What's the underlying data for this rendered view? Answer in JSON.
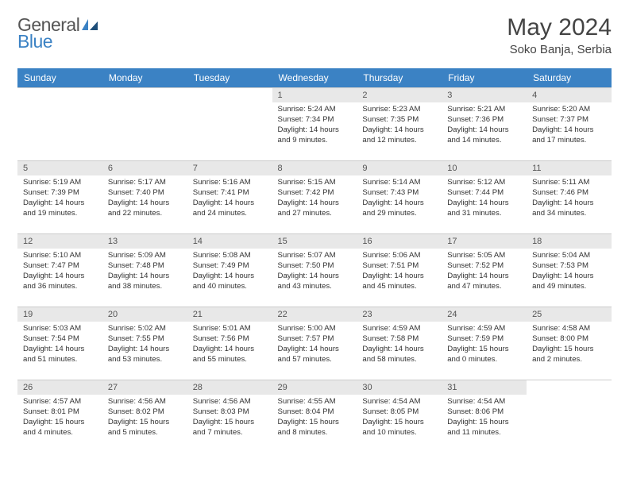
{
  "brand": {
    "general": "General",
    "blue": "Blue"
  },
  "title": "May 2024",
  "location": "Soko Banja, Serbia",
  "colors": {
    "header_bg": "#3b82c4",
    "header_fg": "#ffffff",
    "daynum_bg": "#e8e8e8",
    "border": "#cccccc",
    "brand_blue": "#3b82c4",
    "brand_gray": "#555555"
  },
  "weekdays": [
    "Sunday",
    "Monday",
    "Tuesday",
    "Wednesday",
    "Thursday",
    "Friday",
    "Saturday"
  ],
  "weeks": [
    [
      {
        "empty": true
      },
      {
        "empty": true
      },
      {
        "empty": true
      },
      {
        "n": "1",
        "sr": "Sunrise: 5:24 AM",
        "ss": "Sunset: 7:34 PM",
        "d1": "Daylight: 14 hours",
        "d2": "and 9 minutes."
      },
      {
        "n": "2",
        "sr": "Sunrise: 5:23 AM",
        "ss": "Sunset: 7:35 PM",
        "d1": "Daylight: 14 hours",
        "d2": "and 12 minutes."
      },
      {
        "n": "3",
        "sr": "Sunrise: 5:21 AM",
        "ss": "Sunset: 7:36 PM",
        "d1": "Daylight: 14 hours",
        "d2": "and 14 minutes."
      },
      {
        "n": "4",
        "sr": "Sunrise: 5:20 AM",
        "ss": "Sunset: 7:37 PM",
        "d1": "Daylight: 14 hours",
        "d2": "and 17 minutes."
      }
    ],
    [
      {
        "n": "5",
        "sr": "Sunrise: 5:19 AM",
        "ss": "Sunset: 7:39 PM",
        "d1": "Daylight: 14 hours",
        "d2": "and 19 minutes."
      },
      {
        "n": "6",
        "sr": "Sunrise: 5:17 AM",
        "ss": "Sunset: 7:40 PM",
        "d1": "Daylight: 14 hours",
        "d2": "and 22 minutes."
      },
      {
        "n": "7",
        "sr": "Sunrise: 5:16 AM",
        "ss": "Sunset: 7:41 PM",
        "d1": "Daylight: 14 hours",
        "d2": "and 24 minutes."
      },
      {
        "n": "8",
        "sr": "Sunrise: 5:15 AM",
        "ss": "Sunset: 7:42 PM",
        "d1": "Daylight: 14 hours",
        "d2": "and 27 minutes."
      },
      {
        "n": "9",
        "sr": "Sunrise: 5:14 AM",
        "ss": "Sunset: 7:43 PM",
        "d1": "Daylight: 14 hours",
        "d2": "and 29 minutes."
      },
      {
        "n": "10",
        "sr": "Sunrise: 5:12 AM",
        "ss": "Sunset: 7:44 PM",
        "d1": "Daylight: 14 hours",
        "d2": "and 31 minutes."
      },
      {
        "n": "11",
        "sr": "Sunrise: 5:11 AM",
        "ss": "Sunset: 7:46 PM",
        "d1": "Daylight: 14 hours",
        "d2": "and 34 minutes."
      }
    ],
    [
      {
        "n": "12",
        "sr": "Sunrise: 5:10 AM",
        "ss": "Sunset: 7:47 PM",
        "d1": "Daylight: 14 hours",
        "d2": "and 36 minutes."
      },
      {
        "n": "13",
        "sr": "Sunrise: 5:09 AM",
        "ss": "Sunset: 7:48 PM",
        "d1": "Daylight: 14 hours",
        "d2": "and 38 minutes."
      },
      {
        "n": "14",
        "sr": "Sunrise: 5:08 AM",
        "ss": "Sunset: 7:49 PM",
        "d1": "Daylight: 14 hours",
        "d2": "and 40 minutes."
      },
      {
        "n": "15",
        "sr": "Sunrise: 5:07 AM",
        "ss": "Sunset: 7:50 PM",
        "d1": "Daylight: 14 hours",
        "d2": "and 43 minutes."
      },
      {
        "n": "16",
        "sr": "Sunrise: 5:06 AM",
        "ss": "Sunset: 7:51 PM",
        "d1": "Daylight: 14 hours",
        "d2": "and 45 minutes."
      },
      {
        "n": "17",
        "sr": "Sunrise: 5:05 AM",
        "ss": "Sunset: 7:52 PM",
        "d1": "Daylight: 14 hours",
        "d2": "and 47 minutes."
      },
      {
        "n": "18",
        "sr": "Sunrise: 5:04 AM",
        "ss": "Sunset: 7:53 PM",
        "d1": "Daylight: 14 hours",
        "d2": "and 49 minutes."
      }
    ],
    [
      {
        "n": "19",
        "sr": "Sunrise: 5:03 AM",
        "ss": "Sunset: 7:54 PM",
        "d1": "Daylight: 14 hours",
        "d2": "and 51 minutes."
      },
      {
        "n": "20",
        "sr": "Sunrise: 5:02 AM",
        "ss": "Sunset: 7:55 PM",
        "d1": "Daylight: 14 hours",
        "d2": "and 53 minutes."
      },
      {
        "n": "21",
        "sr": "Sunrise: 5:01 AM",
        "ss": "Sunset: 7:56 PM",
        "d1": "Daylight: 14 hours",
        "d2": "and 55 minutes."
      },
      {
        "n": "22",
        "sr": "Sunrise: 5:00 AM",
        "ss": "Sunset: 7:57 PM",
        "d1": "Daylight: 14 hours",
        "d2": "and 57 minutes."
      },
      {
        "n": "23",
        "sr": "Sunrise: 4:59 AM",
        "ss": "Sunset: 7:58 PM",
        "d1": "Daylight: 14 hours",
        "d2": "and 58 minutes."
      },
      {
        "n": "24",
        "sr": "Sunrise: 4:59 AM",
        "ss": "Sunset: 7:59 PM",
        "d1": "Daylight: 15 hours",
        "d2": "and 0 minutes."
      },
      {
        "n": "25",
        "sr": "Sunrise: 4:58 AM",
        "ss": "Sunset: 8:00 PM",
        "d1": "Daylight: 15 hours",
        "d2": "and 2 minutes."
      }
    ],
    [
      {
        "n": "26",
        "sr": "Sunrise: 4:57 AM",
        "ss": "Sunset: 8:01 PM",
        "d1": "Daylight: 15 hours",
        "d2": "and 4 minutes."
      },
      {
        "n": "27",
        "sr": "Sunrise: 4:56 AM",
        "ss": "Sunset: 8:02 PM",
        "d1": "Daylight: 15 hours",
        "d2": "and 5 minutes."
      },
      {
        "n": "28",
        "sr": "Sunrise: 4:56 AM",
        "ss": "Sunset: 8:03 PM",
        "d1": "Daylight: 15 hours",
        "d2": "and 7 minutes."
      },
      {
        "n": "29",
        "sr": "Sunrise: 4:55 AM",
        "ss": "Sunset: 8:04 PM",
        "d1": "Daylight: 15 hours",
        "d2": "and 8 minutes."
      },
      {
        "n": "30",
        "sr": "Sunrise: 4:54 AM",
        "ss": "Sunset: 8:05 PM",
        "d1": "Daylight: 15 hours",
        "d2": "and 10 minutes."
      },
      {
        "n": "31",
        "sr": "Sunrise: 4:54 AM",
        "ss": "Sunset: 8:06 PM",
        "d1": "Daylight: 15 hours",
        "d2": "and 11 minutes."
      },
      {
        "empty": true
      }
    ]
  ]
}
